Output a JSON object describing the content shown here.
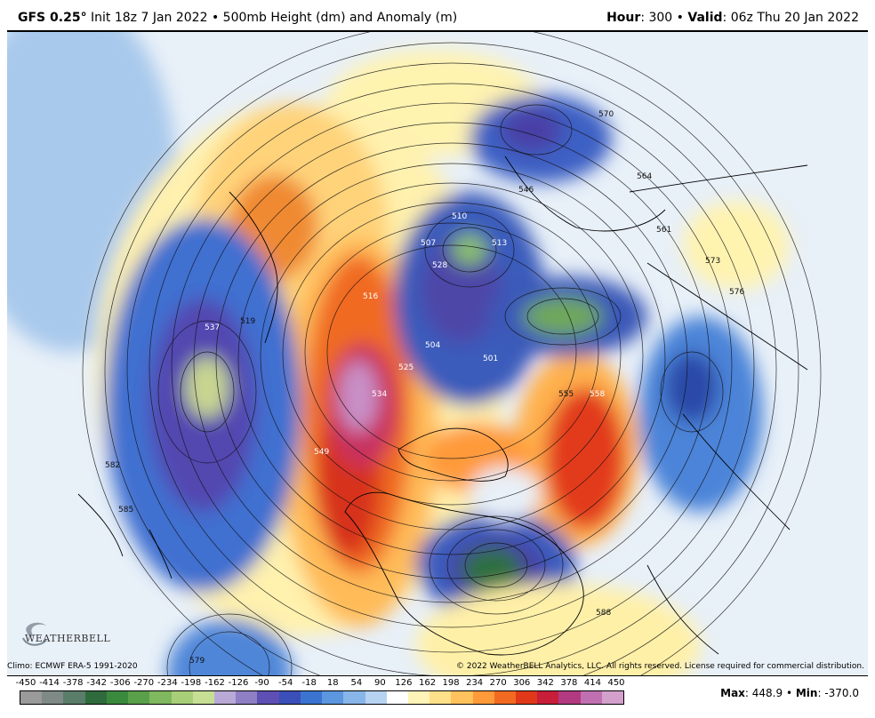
{
  "header": {
    "model": "GFS 0.25",
    "degree": "°",
    "init": "Init 18z 7 Jan 2022",
    "sep": "•",
    "product": "500mb Height (dm) and Anomaly (m)",
    "hour_label": "Hour",
    "hour_value": "300",
    "valid_label": "Valid",
    "valid_value": "06z Thu 20 Jan 2022"
  },
  "credits": {
    "climo": "Climo: ECMWF ERA-5 1991-2020",
    "copyright": "© 2022 WeatherBELL Analytics, LLC. All rights reserved. License required for commercial distribution.",
    "logo_text": "WEATHERBELL"
  },
  "colorbar": {
    "ticks": [
      "-450",
      "-414",
      "-378",
      "-342",
      "-306",
      "-270",
      "-234",
      "-198",
      "-162",
      "-126",
      "-90",
      "-54",
      "-18",
      "18",
      "54",
      "90",
      "126",
      "162",
      "198",
      "234",
      "270",
      "306",
      "342",
      "378",
      "414",
      "450"
    ],
    "colors": [
      "#9a9a9a",
      "#7f8a86",
      "#5a7d6a",
      "#2f6b3c",
      "#3a8a3e",
      "#5aa04a",
      "#7fb85e",
      "#a8cf78",
      "#c7df95",
      "#b9a9d6",
      "#8f7fc4",
      "#5d4fb3",
      "#3b4fb8",
      "#3a74d0",
      "#5b96de",
      "#88b6ea",
      "#b7d3f2",
      "#ffffff",
      "#fff4b8",
      "#ffe08a",
      "#ffc25c",
      "#ff9a3a",
      "#f26a22",
      "#e0391a",
      "#c81e3a",
      "#b23a80",
      "#c070b0",
      "#d3a0cc"
    ]
  },
  "stats": {
    "max_label": "Max",
    "max_value": "448.9",
    "min_label": "Min",
    "min_value": "-370.0"
  },
  "contour_labels": [
    "537",
    "519",
    "516",
    "510",
    "507",
    "501",
    "513",
    "546",
    "528",
    "504",
    "582",
    "585",
    "579",
    "570",
    "564",
    "561",
    "573",
    "576",
    "588",
    "555",
    "558",
    "549",
    "534",
    "525"
  ]
}
